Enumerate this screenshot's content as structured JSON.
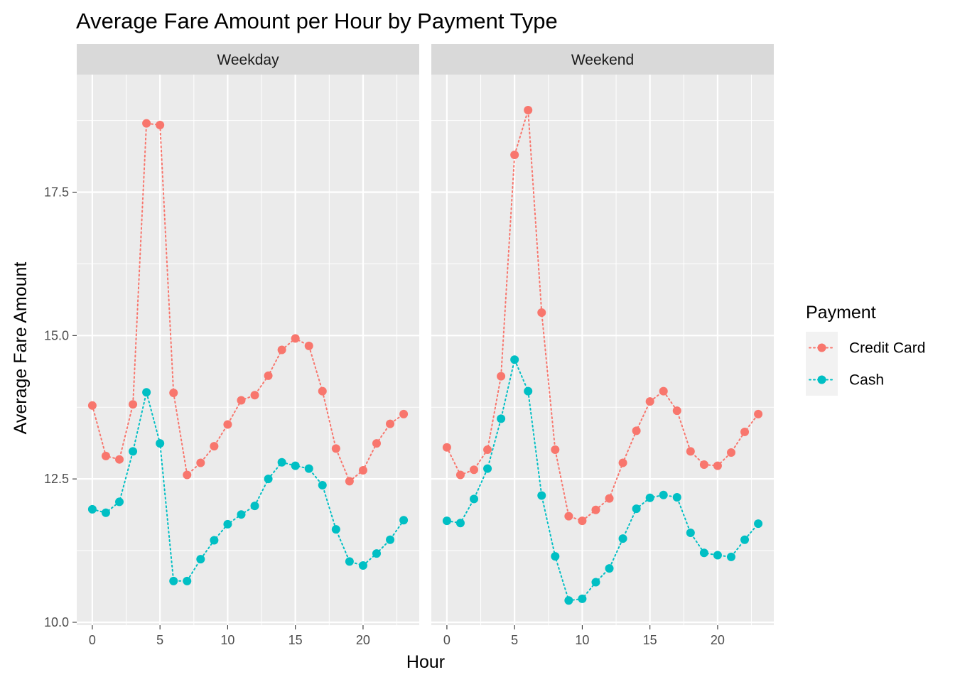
{
  "chart_data": {
    "type": "line",
    "title": "Average Fare Amount per Hour by Payment Type",
    "xlabel": "Hour",
    "ylabel": "Average Fare Amount",
    "xlim": [
      -1.15,
      24.15
    ],
    "ylim": [
      9.95,
      19.55
    ],
    "x_ticks": [
      0,
      5,
      10,
      15,
      20
    ],
    "x_tick_labels": [
      "0",
      "5",
      "10",
      "15",
      "20"
    ],
    "y_ticks": [
      10.0,
      12.5,
      15.0,
      17.5
    ],
    "y_tick_labels": [
      "10.0",
      "12.5",
      "15.0",
      "17.5"
    ],
    "grid": true,
    "line_style": "dotted",
    "legend_title": "Payment",
    "legend_position": "right",
    "x": [
      0,
      1,
      2,
      3,
      4,
      5,
      6,
      7,
      8,
      9,
      10,
      11,
      12,
      13,
      14,
      15,
      16,
      17,
      18,
      19,
      20,
      21,
      22,
      23
    ],
    "panels": [
      {
        "label": "Weekday",
        "series": [
          {
            "name": "Credit Card",
            "color": "#F8766D",
            "values": [
              13.78,
              12.9,
              12.84,
              13.8,
              18.7,
              18.67,
              14.0,
              12.57,
              12.78,
              13.07,
              13.45,
              13.87,
              13.96,
              14.3,
              14.75,
              14.95,
              14.82,
              14.03,
              13.03,
              12.46,
              12.65,
              13.12,
              13.46,
              13.63
            ]
          },
          {
            "name": "Cash",
            "color": "#00BFC4",
            "values": [
              11.97,
              11.91,
              12.1,
              12.98,
              14.01,
              13.12,
              10.72,
              10.72,
              11.1,
              11.43,
              11.71,
              11.88,
              12.03,
              12.5,
              12.79,
              12.73,
              12.68,
              12.39,
              11.62,
              11.06,
              10.99,
              11.2,
              11.44,
              11.78
            ]
          }
        ]
      },
      {
        "label": "Weekend",
        "series": [
          {
            "name": "Credit Card",
            "color": "#F8766D",
            "values": [
              13.05,
              12.57,
              12.66,
              13.01,
              14.29,
              18.15,
              18.93,
              15.4,
              13.01,
              11.85,
              11.77,
              11.96,
              12.16,
              12.78,
              13.34,
              13.85,
              14.03,
              13.69,
              12.98,
              12.75,
              12.73,
              12.96,
              13.32,
              13.63
            ]
          },
          {
            "name": "Cash",
            "color": "#00BFC4",
            "values": [
              11.77,
              11.73,
              12.15,
              12.68,
              13.55,
              14.58,
              14.03,
              12.21,
              11.15,
              10.38,
              10.41,
              10.7,
              10.94,
              11.46,
              11.98,
              12.17,
              12.22,
              12.18,
              11.56,
              11.21,
              11.17,
              11.14,
              11.44,
              11.72
            ]
          }
        ]
      }
    ]
  }
}
